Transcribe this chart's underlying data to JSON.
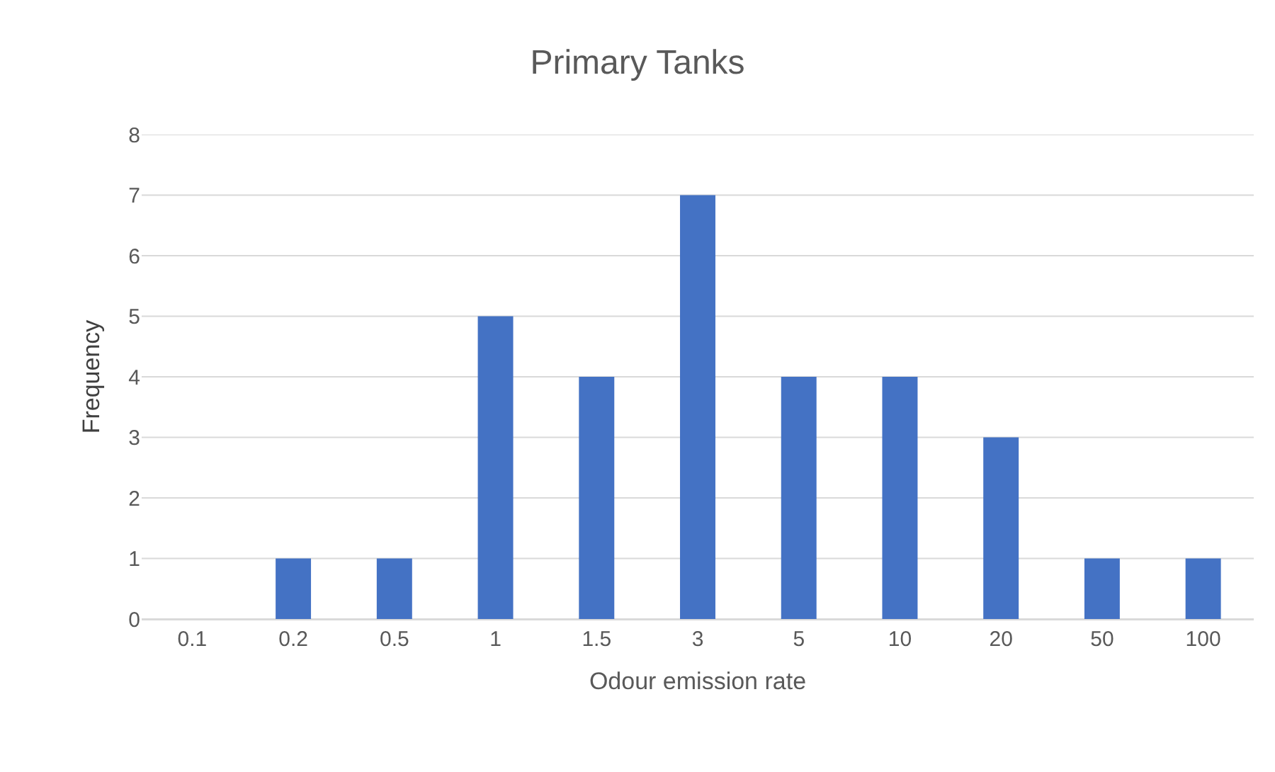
{
  "chart_data": {
    "type": "bar",
    "title": "Primary Tanks",
    "xlabel": "Odour emission rate",
    "ylabel": "Frequency",
    "categories": [
      "0.1",
      "0.2",
      "0.5",
      "1",
      "1.5",
      "3",
      "5",
      "10",
      "20",
      "50",
      "100"
    ],
    "values": [
      0,
      1,
      1,
      5,
      4,
      7,
      4,
      4,
      3,
      1,
      1
    ],
    "color": "#4472c4",
    "ylim": [
      0,
      8
    ],
    "yticks": [
      0,
      1,
      2,
      3,
      4,
      5,
      6,
      7,
      8
    ],
    "grid": "y"
  }
}
